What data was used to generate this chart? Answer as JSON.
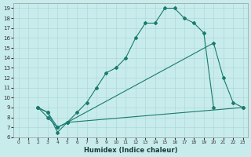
{
  "xlabel": "Humidex (Indice chaleur)",
  "bg_color": "#c8ecec",
  "grid_color": "#b0d8d8",
  "line_color": "#1a7a6e",
  "xlim": [
    -0.5,
    23.5
  ],
  "ylim": [
    6,
    19.5
  ],
  "xticks": [
    0,
    1,
    2,
    3,
    4,
    5,
    6,
    7,
    8,
    9,
    10,
    11,
    12,
    13,
    14,
    15,
    16,
    17,
    18,
    19,
    20,
    21,
    22,
    23
  ],
  "yticks": [
    6,
    7,
    8,
    9,
    10,
    11,
    12,
    13,
    14,
    15,
    16,
    17,
    18,
    19
  ],
  "line1": {
    "x": [
      2,
      3,
      4,
      5,
      6,
      7,
      8,
      9,
      10,
      11,
      12,
      13,
      14,
      15,
      16,
      17,
      18,
      19,
      20
    ],
    "y": [
      9,
      8.5,
      6.5,
      7.5,
      8.5,
      9.5,
      11,
      12.5,
      13,
      14,
      16,
      17.5,
      17.5,
      19,
      19,
      18,
      17.5,
      16.5,
      9
    ]
  },
  "line2": {
    "x": [
      2,
      3,
      4,
      5,
      20,
      21,
      22,
      23
    ],
    "y": [
      9,
      8.5,
      7,
      7.5,
      15.5,
      12,
      9.5,
      9
    ]
  },
  "line3": {
    "x": [
      2,
      3,
      4,
      5,
      23
    ],
    "y": [
      9,
      8,
      7,
      7.5,
      9
    ]
  }
}
